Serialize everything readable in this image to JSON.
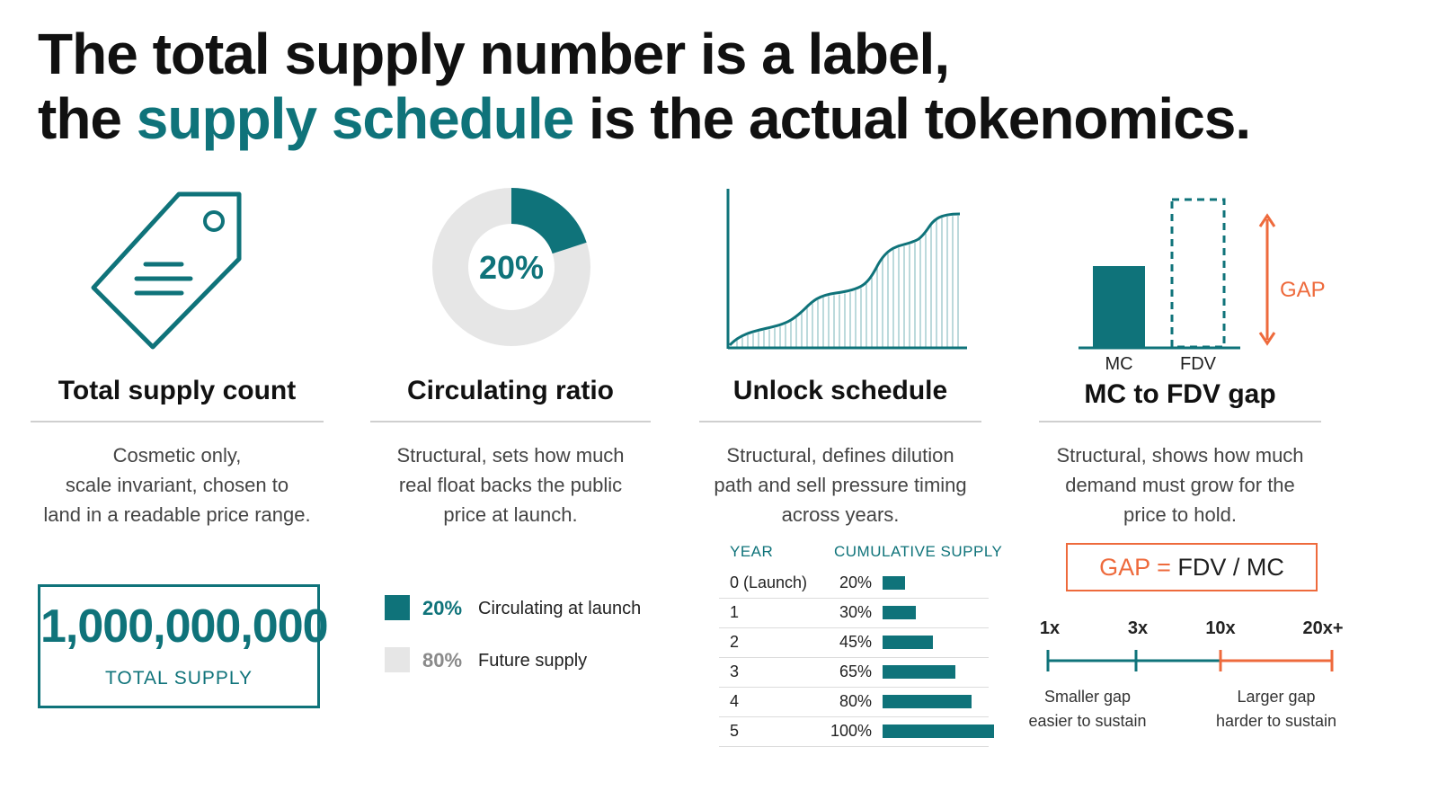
{
  "headline": {
    "line1": "The total supply number is a label,",
    "line2_pre": "the ",
    "line2_accent": "supply schedule",
    "line2_post": " is the actual tokenomics."
  },
  "colors": {
    "teal": "#0f737a",
    "orange": "#ee6a3c",
    "light_gray": "#e6e6e6",
    "text": "#111111"
  },
  "columns": [
    {
      "icon": "price-tag-icon",
      "title": "Total supply count",
      "desc": [
        "Cosmetic only,",
        "scale invariant, chosen to",
        "land in a readable price range."
      ],
      "supply_value": "1,000,000,000",
      "supply_label": "TOTAL SUPPLY"
    },
    {
      "icon": "donut-chart-icon",
      "title": "Circulating ratio",
      "desc": [
        "Structural, sets how much",
        "real float backs the public",
        "price at launch."
      ],
      "donut_center": "20%",
      "circulating_fraction": 0.2,
      "legend": [
        {
          "pct": "20%",
          "label": "Circulating at launch"
        },
        {
          "pct": "80%",
          "label": "Future supply"
        }
      ]
    },
    {
      "icon": "unlock-curve-icon",
      "title": "Unlock schedule",
      "desc": [
        "Structural, defines dilution",
        "path and sell pressure timing",
        "across years."
      ],
      "table_headers": [
        "YEAR",
        "CUMULATIVE SUPPLY"
      ]
    },
    {
      "icon": "bar-gap-icon",
      "title": "MC to FDV gap",
      "desc": [
        "Structural, shows how much",
        "demand must grow for the",
        "price to hold."
      ],
      "bar_labels": [
        "MC",
        "FDV"
      ],
      "gap_label": "GAP",
      "formula": {
        "lhs": "GAP",
        "eq": "=",
        "rhs": "FDV / MC"
      },
      "scale_ticks": [
        "1x",
        "3x",
        "10x",
        "20x+"
      ],
      "notes": [
        {
          "line1": "Smaller gap",
          "line2": "easier to sustain"
        },
        {
          "line1": "Larger gap",
          "line2": "harder to sustain"
        }
      ]
    }
  ],
  "chart_data": {
    "type": "table",
    "columns": [
      "YEAR",
      "CUMULATIVE SUPPLY"
    ],
    "rows": [
      {
        "year": "0 (Launch)",
        "label": "20%",
        "value": 20
      },
      {
        "year": "1",
        "label": "30%",
        "value": 30
      },
      {
        "year": "2",
        "label": "45%",
        "value": 45
      },
      {
        "year": "3",
        "label": "65%",
        "value": 65
      },
      {
        "year": "4",
        "label": "80%",
        "value": 80
      },
      {
        "year": "5",
        "label": "100%",
        "value": 100
      }
    ]
  }
}
